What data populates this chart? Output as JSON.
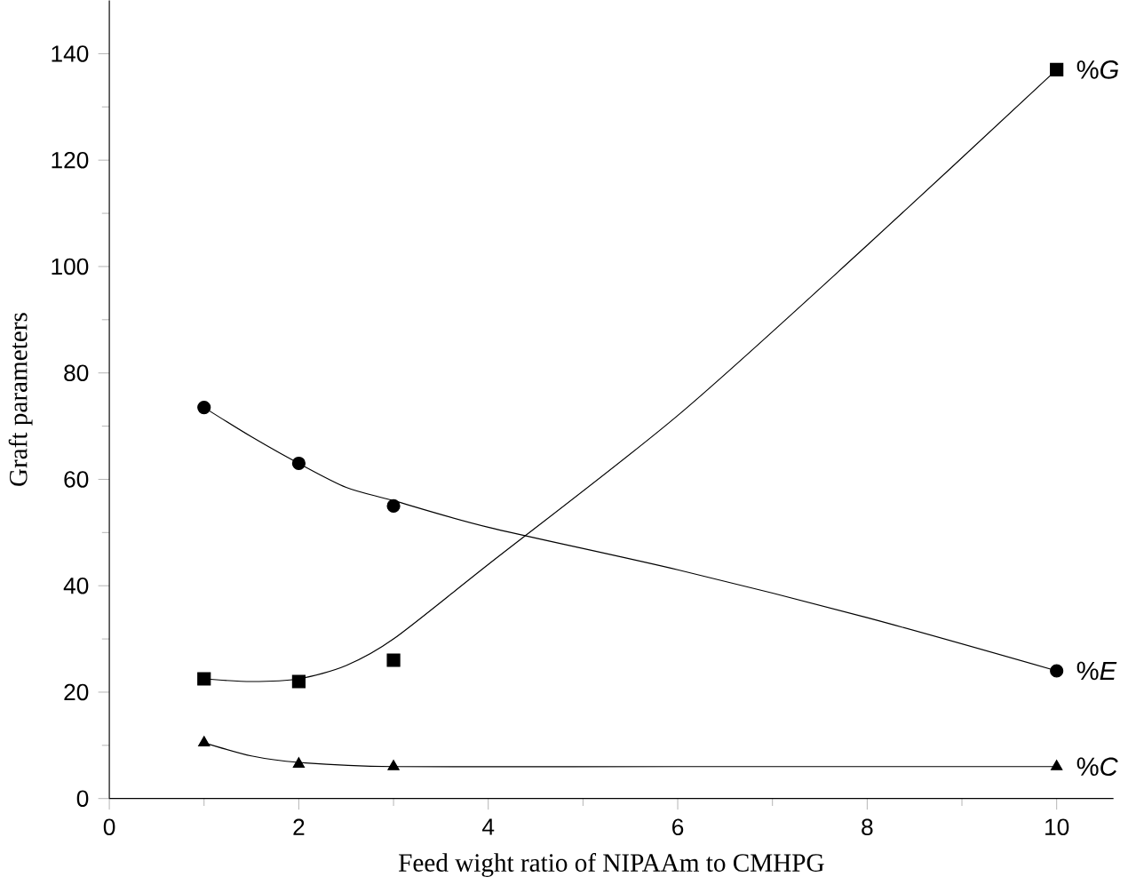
{
  "chart_data": {
    "type": "scatter",
    "xlabel": "Feed wight ratio of NIPAAm to CMHPG",
    "ylabel": "Graft parameters",
    "xlim": [
      0,
      10.6
    ],
    "xticks": [
      0,
      2,
      4,
      6,
      8,
      10
    ],
    "ylim": [
      0,
      150
    ],
    "yticks": [
      0,
      20,
      40,
      60,
      80,
      100,
      120,
      140
    ],
    "grid": false,
    "legend": false,
    "series": [
      {
        "name": "%*G*",
        "marker": "square",
        "color": "#000000",
        "x": [
          1,
          2,
          3,
          10
        ],
        "values": [
          22.5,
          22,
          26,
          137
        ]
      },
      {
        "name": "%*E*",
        "marker": "circle",
        "color": "#000000",
        "x": [
          1,
          2,
          3,
          10
        ],
        "values": [
          73.5,
          63,
          55,
          24
        ]
      },
      {
        "name": "%*C*",
        "marker": "triangle",
        "color": "#000000",
        "x": [
          1,
          2,
          3,
          10
        ],
        "values": [
          10.5,
          6.5,
          6,
          6
        ]
      },
      {
        "type": "line",
        "marker": "none",
        "color": "#000000",
        "x": [
          1,
          1.5,
          2,
          2.5,
          3,
          4,
          6,
          8,
          10
        ],
        "values": [
          22.5,
          22,
          22.5,
          25,
          30,
          44,
          72,
          104,
          137
        ]
      },
      {
        "type": "line",
        "marker": "none",
        "color": "#000000",
        "x": [
          1,
          1.5,
          2,
          2.5,
          3,
          4,
          6,
          8,
          10
        ],
        "values": [
          73.5,
          68,
          63,
          58.5,
          56,
          51,
          43,
          34,
          24
        ]
      },
      {
        "type": "line",
        "marker": "none",
        "color": "#000000",
        "x": [
          1,
          1.5,
          2,
          3,
          6,
          10
        ],
        "values": [
          10.5,
          8,
          6.8,
          6,
          6,
          6
        ]
      }
    ]
  }
}
